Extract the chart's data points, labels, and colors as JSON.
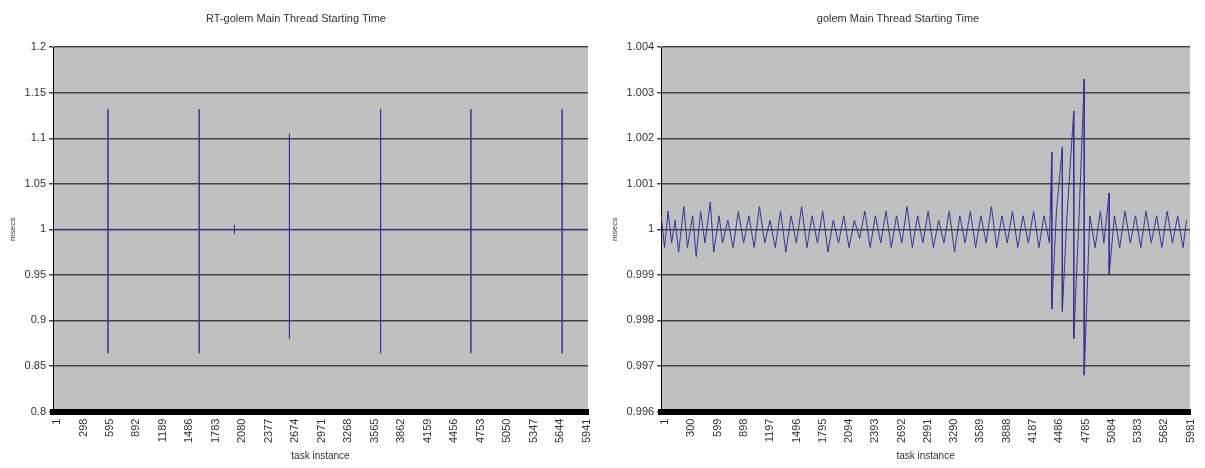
{
  "chart_data": [
    {
      "type": "line",
      "title": "RT-golem Main Thread Starting Time",
      "xlabel": "task instance",
      "ylabel": "msecs",
      "grid": "y",
      "marker": "none",
      "legend": false,
      "xlim": [
        1,
        6000
      ],
      "xticks": [
        1,
        298,
        595,
        892,
        1189,
        1486,
        1783,
        2080,
        2377,
        2674,
        2971,
        3268,
        3565,
        3862,
        4159,
        4456,
        4753,
        5050,
        5347,
        5644,
        5941
      ],
      "ylim": [
        0.8,
        1.2
      ],
      "yticks": [
        0.8,
        0.85,
        0.9,
        0.95,
        1,
        1.05,
        1.1,
        1.15,
        1.2
      ],
      "series": [
        {
          "color": "#333399",
          "x": [
            1,
            617,
            617,
            617,
            617,
            1640,
            1640,
            1640,
            1640,
            2036,
            2036,
            2036,
            2036,
            2652,
            2652,
            2652,
            2652,
            3675,
            3675,
            3675,
            3675,
            4687,
            4687,
            4687,
            4687,
            5710,
            5710,
            5710,
            5710,
            6000
          ],
          "values": [
            1,
            1,
            1.132,
            0.864,
            1,
            1,
            1.132,
            0.864,
            1,
            1,
            1.005,
            0.995,
            1,
            1,
            1.105,
            0.88,
            1,
            1,
            1.132,
            0.864,
            1,
            1,
            1.132,
            0.864,
            1,
            1,
            1.132,
            0.864,
            1,
            1
          ]
        }
      ]
    },
    {
      "type": "line",
      "title": "golem Main Thread Starting Time",
      "xlabel": "task instance",
      "ylabel": "msecs",
      "grid": "y",
      "marker": "none",
      "legend": false,
      "xlim": [
        1,
        6020
      ],
      "xticks": [
        1,
        300,
        599,
        898,
        1197,
        1496,
        1795,
        2094,
        2393,
        2692,
        2991,
        3290,
        3589,
        3888,
        4187,
        4486,
        4785,
        5084,
        5383,
        5682,
        5981
      ],
      "ylim": [
        0.996,
        1.004
      ],
      "yticks": [
        0.996,
        0.997,
        0.998,
        0.999,
        1,
        1.001,
        1.002,
        1.003,
        1.004
      ],
      "series": [
        {
          "color": "#333399",
          "x": [
            1,
            40,
            80,
            120,
            160,
            200,
            260,
            300,
            360,
            400,
            450,
            500,
            560,
            600,
            660,
            700,
            760,
            820,
            880,
            940,
            1000,
            1060,
            1120,
            1180,
            1240,
            1300,
            1360,
            1420,
            1480,
            1540,
            1600,
            1660,
            1720,
            1780,
            1840,
            1900,
            1960,
            2020,
            2080,
            2140,
            2200,
            2260,
            2320,
            2380,
            2440,
            2500,
            2560,
            2620,
            2680,
            2740,
            2800,
            2860,
            2920,
            2980,
            3040,
            3100,
            3160,
            3220,
            3280,
            3340,
            3400,
            3460,
            3520,
            3580,
            3640,
            3700,
            3760,
            3820,
            3880,
            3940,
            4000,
            4060,
            4120,
            4180,
            4240,
            4300,
            4360,
            4420,
            4447,
            4447,
            4500,
            4567,
            4567,
            4620,
            4697,
            4697,
            4760,
            4816,
            4816,
            4880,
            4940,
            5000,
            5040,
            5100,
            5100,
            5160,
            5220,
            5280,
            5340,
            5400,
            5460,
            5520,
            5580,
            5640,
            5700,
            5760,
            5820,
            5880,
            5940,
            5981
          ],
          "values": [
            1.0003,
            0.9996,
            1.0004,
            0.9997,
            1.0002,
            0.9995,
            1.0005,
            0.9996,
            1.0003,
            0.9994,
            1.0004,
            0.9997,
            1.0006,
            0.9995,
            1.0003,
            0.9997,
            1.0002,
            0.9996,
            1.0004,
            0.9997,
            1.0003,
            0.9996,
            1.0005,
            0.9997,
            1.0002,
            0.9996,
            1.0004,
            0.9995,
            1.0003,
            0.9997,
            1.0005,
            0.9996,
            1.0003,
            0.9997,
            1.0004,
            0.9995,
            1.0002,
            0.9997,
            1.0003,
            0.9996,
            1.0002,
            0.9998,
            1.0004,
            0.9996,
            1.0003,
            0.9997,
            1.0004,
            0.9996,
            1.0003,
            0.9997,
            1.0005,
            0.9996,
            1.0003,
            0.9997,
            1.0004,
            0.9996,
            1.0002,
            0.9997,
            1.0004,
            0.9995,
            1.0003,
            0.9997,
            1.0004,
            0.9996,
            1.0003,
            0.9997,
            1.0005,
            0.9996,
            1.0003,
            0.9997,
            1.0004,
            0.9996,
            1.0003,
            0.9997,
            1.0004,
            0.9996,
            1.0003,
            0.9997,
            1.0017,
            0.99825,
            1.0004,
            1.0018,
            0.9982,
            1.0003,
            1.0026,
            0.9976,
            1.0004,
            1.0033,
            0.9968,
            1.0003,
            0.9996,
            1.0004,
            0.9997,
            1.0008,
            0.999,
            1.0003,
            0.9996,
            1.0004,
            0.9997,
            1.0003,
            0.9996,
            1.0004,
            0.9997,
            1.0003,
            0.9996,
            1.0004,
            0.9997,
            1.0003,
            0.9996,
            1.0002
          ]
        }
      ]
    }
  ]
}
